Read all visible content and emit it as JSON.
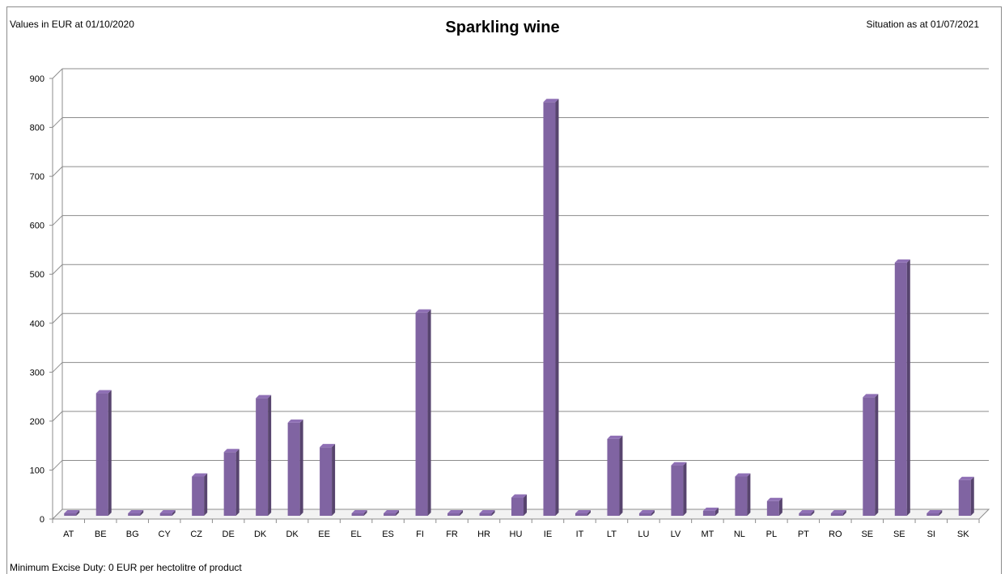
{
  "header": {
    "note_left": "Values in EUR at 01/10/2020",
    "note_right": "Situation as at 01/07/2021"
  },
  "footer": {
    "note": "Minimum Excise Duty: 0 EUR per hectolitre of product"
  },
  "chart_data": {
    "type": "bar",
    "title": "Sparkling wine",
    "xlabel": "",
    "ylabel": "",
    "ylim": [
      0,
      900
    ],
    "yticks": [
      0,
      100,
      200,
      300,
      400,
      500,
      600,
      700,
      800,
      900
    ],
    "grid": true,
    "legend": "none",
    "bar_color": "#8064a2",
    "categories": [
      "AT",
      "BE",
      "BG",
      "CY",
      "CZ",
      "DE",
      "DK",
      "DK",
      "EE",
      "EL",
      "ES",
      "FI",
      "FR",
      "HR",
      "HU",
      "IE",
      "IT",
      "LT",
      "LU",
      "LV",
      "MT",
      "NL",
      "PL",
      "PT",
      "RO",
      "SE",
      "SE",
      "SI",
      "SK"
    ],
    "values": [
      0,
      260,
      0,
      0,
      90,
      140,
      250,
      200,
      150,
      0,
      0,
      425,
      10,
      0,
      47,
      855,
      0,
      167,
      0,
      113,
      20,
      90,
      40,
      0,
      13,
      252,
      527,
      0,
      83
    ]
  }
}
